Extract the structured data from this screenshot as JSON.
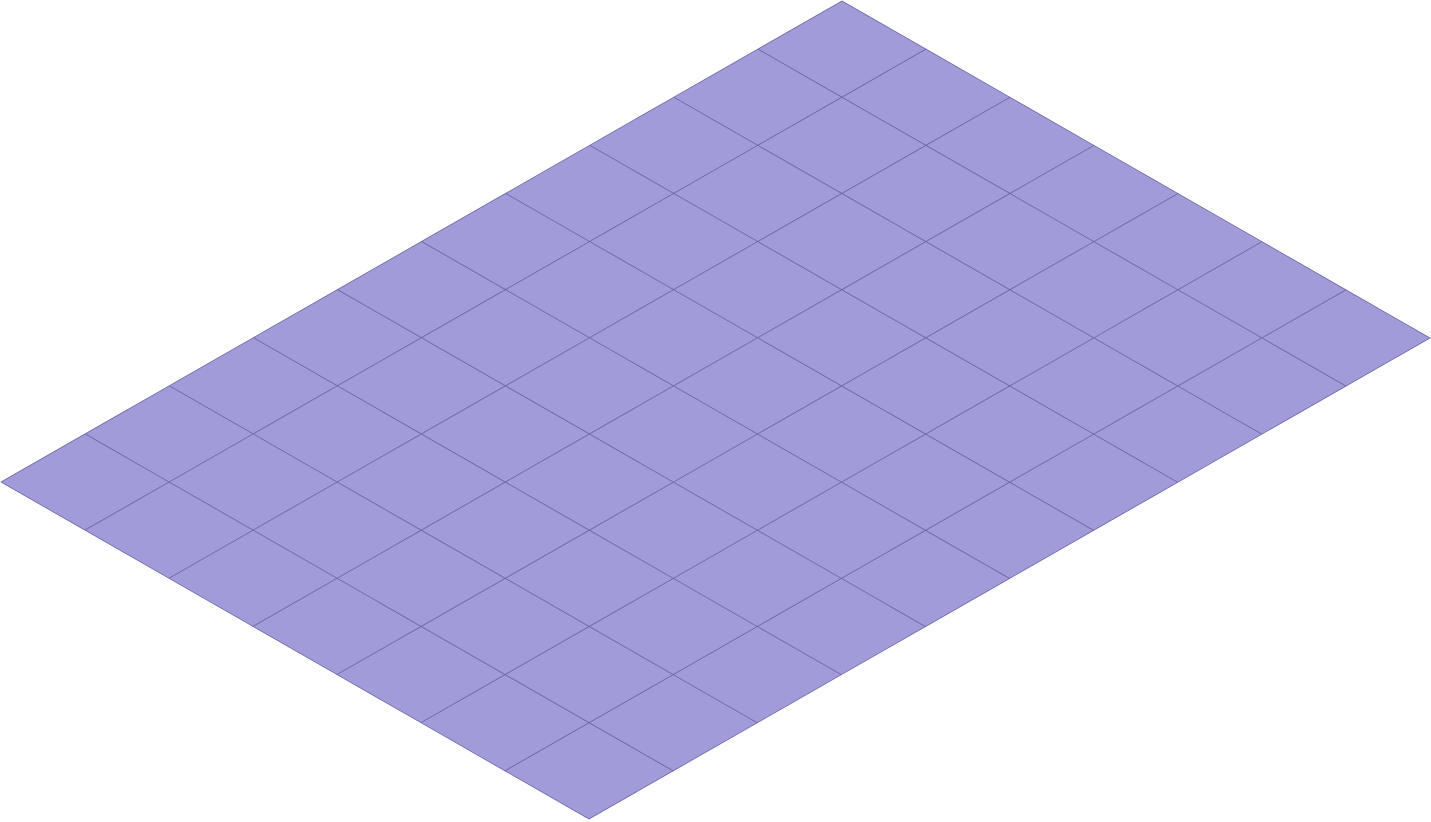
{
  "grid": {
    "columns": 7,
    "rows": 10,
    "fill_color": "#a19bd9",
    "line_color": "#6e68a8"
  }
}
